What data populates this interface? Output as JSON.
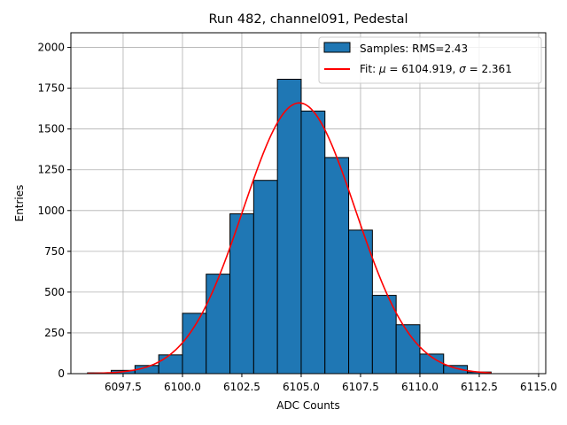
{
  "chart_data": {
    "type": "bar",
    "title": "Run 482, channel091, Pedestal",
    "xlabel": "ADC Counts",
    "ylabel": "Entries",
    "xlim": [
      6095.3,
      6115.3
    ],
    "ylim": [
      0,
      2090
    ],
    "xticks": [
      6097.5,
      6100.0,
      6102.5,
      6105.0,
      6107.5,
      6110.0,
      6112.5,
      6115.0
    ],
    "xtick_labels": [
      "6097.5",
      "6100.0",
      "6102.5",
      "6105.0",
      "6107.5",
      "6110.0",
      "6112.5",
      "6115.0"
    ],
    "yticks": [
      0,
      250,
      500,
      750,
      1000,
      1250,
      1500,
      1750,
      2000
    ],
    "ytick_labels": [
      "0",
      "250",
      "500",
      "750",
      "1000",
      "1250",
      "1500",
      "1750",
      "2000"
    ],
    "grid": true,
    "legend_position": "top-right",
    "histogram": {
      "name": "Samples: RMS=2.43",
      "color": "#1f77b4",
      "bin_edges": [
        6096,
        6097,
        6098,
        6099,
        6100,
        6101,
        6102,
        6103,
        6104,
        6105,
        6106,
        6107,
        6108,
        6109,
        6110,
        6111,
        6112,
        6113
      ],
      "counts": [
        5,
        20,
        50,
        115,
        370,
        610,
        980,
        1185,
        1805,
        1610,
        1325,
        880,
        480,
        300,
        120,
        50,
        10
      ]
    },
    "fit": {
      "label_prefix": "Fit: ",
      "mu_symbol": "μ",
      "mu": "6104.919",
      "sigma_symbol": "σ",
      "sigma": "2.361",
      "color": "#ff0000",
      "x_range": [
        6096,
        6113
      ],
      "amplitude": 1660
    }
  }
}
